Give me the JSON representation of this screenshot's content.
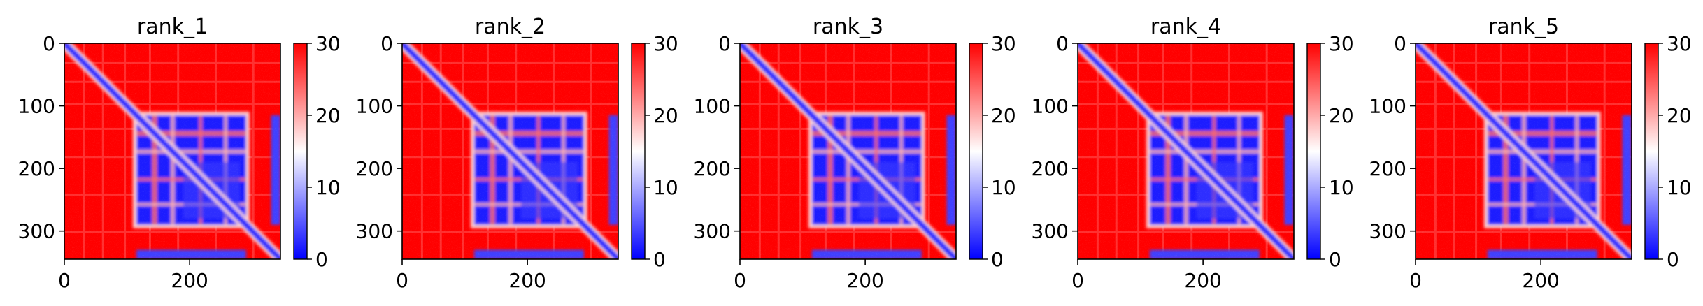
{
  "figure": {
    "panel_count": 5
  },
  "chart_data": [
    {
      "type": "heatmap",
      "title": "rank_1",
      "x_ticks": [
        0,
        200
      ],
      "y_ticks": [
        0,
        100,
        200,
        300
      ],
      "xlim": [
        0,
        345
      ],
      "ylim": [
        345,
        0
      ],
      "grid": false,
      "colorbar": {
        "ticks": [
          0,
          10,
          20,
          30
        ],
        "range": [
          0,
          30
        ],
        "colors": [
          "#0000ff",
          "#ffffff",
          "#ff0000"
        ]
      },
      "matrix_size": 345,
      "low_value_blocks": [
        [
          115,
          290
        ],
        [
          330,
          345
        ]
      ],
      "diagonal_band": "low"
    },
    {
      "type": "heatmap",
      "title": "rank_2",
      "x_ticks": [
        0,
        200
      ],
      "y_ticks": [
        0,
        100,
        200,
        300
      ],
      "xlim": [
        0,
        345
      ],
      "ylim": [
        345,
        0
      ],
      "grid": false,
      "colorbar": {
        "ticks": [
          0,
          10,
          20,
          30
        ],
        "range": [
          0,
          30
        ],
        "colors": [
          "#0000ff",
          "#ffffff",
          "#ff0000"
        ]
      },
      "matrix_size": 345,
      "low_value_blocks": [
        [
          115,
          290
        ],
        [
          330,
          345
        ]
      ],
      "diagonal_band": "low"
    },
    {
      "type": "heatmap",
      "title": "rank_3",
      "x_ticks": [
        0,
        200
      ],
      "y_ticks": [
        0,
        100,
        200,
        300
      ],
      "xlim": [
        0,
        345
      ],
      "ylim": [
        345,
        0
      ],
      "grid": false,
      "colorbar": {
        "ticks": [
          0,
          10,
          20,
          30
        ],
        "range": [
          0,
          30
        ],
        "colors": [
          "#0000ff",
          "#ffffff",
          "#ff0000"
        ]
      },
      "matrix_size": 345,
      "low_value_blocks": [
        [
          115,
          290
        ],
        [
          330,
          345
        ]
      ],
      "diagonal_band": "low"
    },
    {
      "type": "heatmap",
      "title": "rank_4",
      "x_ticks": [
        0,
        200
      ],
      "y_ticks": [
        0,
        100,
        200,
        300
      ],
      "xlim": [
        0,
        345
      ],
      "ylim": [
        345,
        0
      ],
      "grid": false,
      "colorbar": {
        "ticks": [
          0,
          10,
          20,
          30
        ],
        "range": [
          0,
          30
        ],
        "colors": [
          "#0000ff",
          "#ffffff",
          "#ff0000"
        ]
      },
      "matrix_size": 345,
      "low_value_blocks": [
        [
          115,
          290
        ],
        [
          330,
          345
        ]
      ],
      "diagonal_band": "low"
    },
    {
      "type": "heatmap",
      "title": "rank_5",
      "x_ticks": [
        0,
        200
      ],
      "y_ticks": [
        0,
        100,
        200,
        300
      ],
      "xlim": [
        0,
        345
      ],
      "ylim": [
        345,
        0
      ],
      "grid": false,
      "colorbar": {
        "ticks": [
          0,
          10,
          20,
          30
        ],
        "range": [
          0,
          30
        ],
        "colors": [
          "#0000ff",
          "#ffffff",
          "#ff0000"
        ]
      },
      "matrix_size": 345,
      "low_value_blocks": [
        [
          115,
          290
        ],
        [
          330,
          345
        ]
      ],
      "diagonal_band": "low"
    }
  ]
}
